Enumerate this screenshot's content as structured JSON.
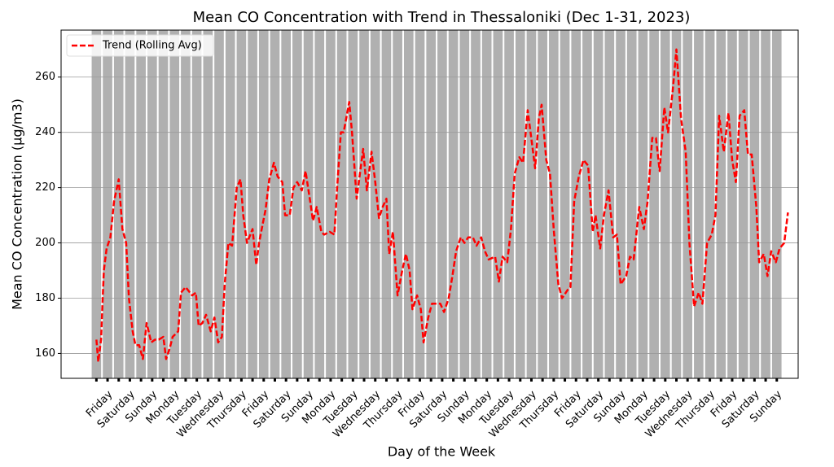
{
  "chart_data": {
    "type": "bar",
    "title": "Mean CO Concentration with Trend in Thessaloniki (Dec 1-31, 2023)",
    "xlabel": "Day of the Week",
    "ylabel": "Mean CO Concentration (µg/m3)",
    "xlim": [
      -38,
      755
    ],
    "ylim": [
      151,
      277
    ],
    "yticks": [
      160,
      180,
      200,
      220,
      240,
      260
    ],
    "xticks": [
      {
        "value": 0,
        "label": "Friday"
      },
      {
        "value": 24,
        "label": "Saturday"
      },
      {
        "value": 48,
        "label": "Sunday"
      },
      {
        "value": 72,
        "label": "Monday"
      },
      {
        "value": 96,
        "label": "Tuesday"
      },
      {
        "value": 120,
        "label": "Wednesday"
      },
      {
        "value": 144,
        "label": "Thursday"
      },
      {
        "value": 168,
        "label": "Friday"
      },
      {
        "value": 192,
        "label": "Saturday"
      },
      {
        "value": 216,
        "label": "Sunday"
      },
      {
        "value": 240,
        "label": "Monday"
      },
      {
        "value": 264,
        "label": "Tuesday"
      },
      {
        "value": 288,
        "label": "Wednesday"
      },
      {
        "value": 312,
        "label": "Thursday"
      },
      {
        "value": 336,
        "label": "Friday"
      },
      {
        "value": 360,
        "label": "Saturday"
      },
      {
        "value": 384,
        "label": "Sunday"
      },
      {
        "value": 408,
        "label": "Monday"
      },
      {
        "value": 432,
        "label": "Tuesday"
      },
      {
        "value": 456,
        "label": "Wednesday"
      },
      {
        "value": 480,
        "label": "Thursday"
      },
      {
        "value": 504,
        "label": "Friday"
      },
      {
        "value": 528,
        "label": "Saturday"
      },
      {
        "value": 552,
        "label": "Sunday"
      },
      {
        "value": 576,
        "label": "Monday"
      },
      {
        "value": 600,
        "label": "Tuesday"
      },
      {
        "value": 624,
        "label": "Wednesday"
      },
      {
        "value": 648,
        "label": "Thursday"
      },
      {
        "value": 672,
        "label": "Friday"
      },
      {
        "value": 696,
        "label": "Saturday"
      },
      {
        "value": 720,
        "label": "Sunday"
      }
    ],
    "grid": true,
    "legend": "upper left",
    "series": [
      {
        "type": "bar",
        "color": "#b0b0b0",
        "x": [
          0,
          12,
          24,
          36,
          48,
          60,
          72,
          84,
          96,
          108,
          120,
          132,
          144,
          156,
          168,
          180,
          192,
          204,
          216,
          228,
          240,
          252,
          264,
          276,
          288,
          300,
          312,
          324,
          336,
          348,
          360,
          372,
          384,
          396,
          408,
          420,
          432,
          444,
          456,
          468,
          480,
          492,
          504,
          516,
          528,
          540,
          552,
          564,
          576,
          588,
          600,
          612,
          624,
          636,
          648,
          660,
          672,
          684,
          696,
          708,
          720,
          732
        ],
        "values": [
          290,
          290,
          290,
          290,
          290,
          290,
          290,
          290,
          290,
          290,
          290,
          290,
          290,
          290,
          290,
          290,
          290,
          290,
          290,
          290,
          290,
          290,
          290,
          290,
          290,
          290,
          290,
          290,
          290,
          290,
          290,
          290,
          290,
          290,
          290,
          290,
          290,
          290,
          290,
          290,
          290,
          290,
          290,
          290,
          290,
          290,
          290,
          290,
          290,
          290,
          290,
          290,
          290,
          290,
          290,
          290,
          290,
          290,
          290,
          290,
          290,
          290
        ]
      },
      {
        "type": "line",
        "name": "Trend (Rolling Avg)",
        "color": "#ff0000",
        "dash": "dashed",
        "x": [
          0,
          2,
          5,
          8,
          11,
          15,
          19,
          24,
          28,
          32,
          35,
          39,
          42,
          46,
          50,
          54,
          59,
          63,
          67,
          72,
          75,
          79,
          82,
          88,
          91,
          96,
          103,
          107,
          110,
          114,
          118,
          123,
          127,
          131,
          135,
          138,
          142,
          146,
          151,
          155,
          158,
          162,
          168,
          172,
          175,
          179,
          182,
          186,
          191,
          195,
          200,
          203,
          208,
          212,
          216,
          221,
          225,
          230,
          233,
          237,
          242,
          245,
          251,
          256,
          259,
          263,
          266,
          272,
          275,
          280,
          287,
          291,
          296,
          300,
          304,
          308,
          312,
          315,
          319,
          324,
          329,
          333,
          337,
          340,
          345,
          349,
          352,
          357,
          361,
          365,
          370,
          374,
          379,
          383,
          387,
          392,
          396,
          400,
          405,
          409,
          414,
          418,
          422,
          429,
          433,
          437,
          442,
          446,
          450,
          455,
          459,
          464,
          469,
          472,
          476,
          479,
          484,
          488,
          492,
          497,
          501,
          507,
          510,
          514,
          519,
          524,
          529,
          534,
          537,
          542,
          546,
          551,
          556,
          560,
          564,
          570,
          574,
          578,
          584,
          589,
          593,
          598,
          602,
          606,
          611,
          615,
          620,
          624,
          629,
          634,
          638,
          643,
          648,
          652,
          657,
          662,
          666,
          670,
          675,
          680,
          684,
          688,
          692,
          697,
          701,
          705,
          710,
          713,
          718,
          722,
          726,
          731,
          735,
          740,
          744
        ],
        "values": [
          165,
          157,
          165,
          190,
          198,
          202,
          215,
          223,
          205,
          200,
          180,
          168,
          163,
          163,
          158,
          171,
          164,
          165,
          165,
          166,
          158,
          162,
          166,
          168,
          182,
          184,
          181,
          182,
          170,
          171,
          174,
          168,
          173,
          164,
          166,
          185,
          200,
          199,
          220,
          223,
          210,
          200,
          205,
          192,
          200,
          207,
          212,
          223,
          229,
          224,
          222,
          210,
          210,
          220,
          222,
          219,
          226,
          215,
          208,
          213,
          204,
          203,
          204,
          203,
          220,
          240,
          240,
          251,
          240,
          216,
          234,
          219,
          233,
          222,
          209,
          213,
          216,
          196,
          204,
          181,
          190,
          196,
          190,
          176,
          181,
          176,
          164,
          173,
          178,
          178,
          178,
          175,
          180,
          188,
          197,
          202,
          200,
          202,
          202,
          199,
          202,
          197,
          194,
          195,
          186,
          195,
          193,
          205,
          225,
          231,
          229,
          248,
          235,
          227,
          245,
          250,
          230,
          225,
          205,
          185,
          180,
          183,
          184,
          215,
          224,
          230,
          228,
          204,
          210,
          198,
          210,
          219,
          202,
          203,
          185,
          188,
          195,
          194,
          213,
          205,
          215,
          238,
          238,
          226,
          249,
          240,
          255,
          270,
          245,
          233,
          200,
          177,
          182,
          178,
          200,
          203,
          210,
          246,
          233,
          247,
          230,
          222,
          246,
          248,
          232,
          232,
          213,
          193,
          196,
          188,
          197,
          193,
          198,
          200,
          211
        ]
      }
    ]
  }
}
